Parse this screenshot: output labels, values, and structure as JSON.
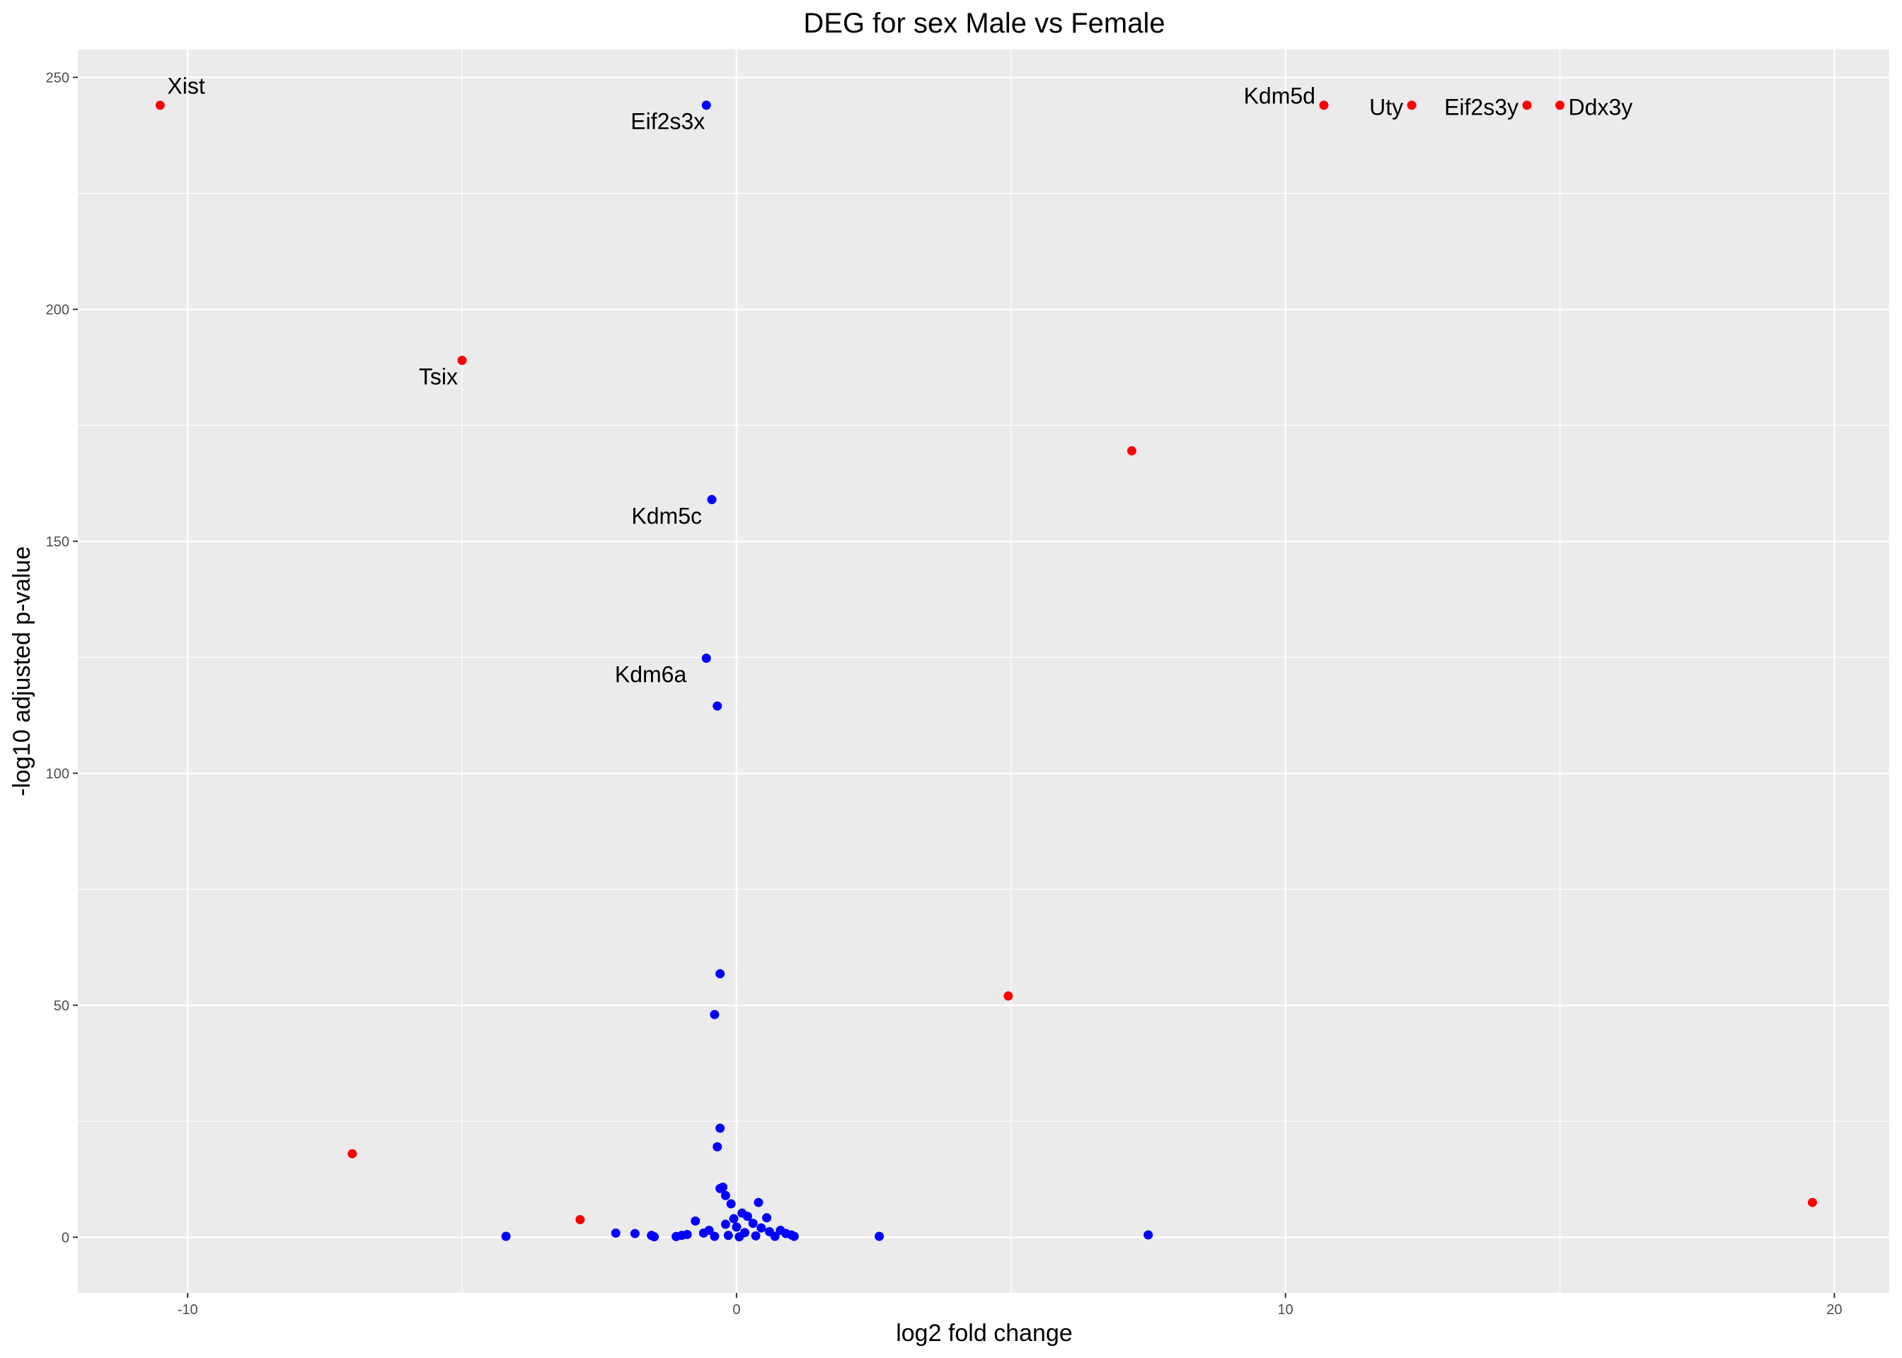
{
  "chart_data": {
    "type": "scatter",
    "title": "DEG for sex Male vs Female",
    "xlabel": "log2 fold change",
    "ylabel": "-log10 adjusted p-value",
    "xlim": [
      -12,
      21
    ],
    "ylim": [
      -12,
      256
    ],
    "x_ticks": [
      -10,
      0,
      10,
      20
    ],
    "y_ticks": [
      0,
      50,
      100,
      150,
      200,
      250
    ],
    "x_tick_labels": [
      "-10",
      "0",
      "10",
      "20"
    ],
    "y_tick_labels": [
      "0",
      "50",
      "100",
      "150",
      "200",
      "250"
    ],
    "grid": true,
    "legend": "none",
    "colors": {
      "significant": "#ff0000",
      "not_significant": "#0000ff",
      "panel_background": "#ebebeb",
      "grid": "#ffffff"
    },
    "series": [
      {
        "color": "#ff0000",
        "points": [
          {
            "x": -10.5,
            "y": 244.0
          },
          {
            "x": -5.0,
            "y": 189.0
          },
          {
            "x": -7.0,
            "y": 18.0
          },
          {
            "x": -2.85,
            "y": 3.8
          },
          {
            "x": 4.95,
            "y": 52.0
          },
          {
            "x": 7.2,
            "y": 169.5
          },
          {
            "x": 10.7,
            "y": 244.0
          },
          {
            "x": 12.3,
            "y": 244.0
          },
          {
            "x": 14.4,
            "y": 244.0
          },
          {
            "x": 15.0,
            "y": 244.0
          },
          {
            "x": 19.6,
            "y": 7.5
          }
        ]
      },
      {
        "color": "#0000ff",
        "points": [
          {
            "x": -0.55,
            "y": 244.0
          },
          {
            "x": -0.45,
            "y": 159.0
          },
          {
            "x": -0.55,
            "y": 124.8
          },
          {
            "x": -0.35,
            "y": 114.5
          },
          {
            "x": -0.3,
            "y": 56.8
          },
          {
            "x": -0.4,
            "y": 48.0
          },
          {
            "x": -0.3,
            "y": 23.5
          },
          {
            "x": -0.35,
            "y": 19.5
          },
          {
            "x": -0.25,
            "y": 10.8
          },
          {
            "x": -0.3,
            "y": 10.5
          },
          {
            "x": -0.2,
            "y": 9.0
          },
          {
            "x": -0.1,
            "y": 7.2
          },
          {
            "x": 0.4,
            "y": 7.5
          },
          {
            "x": 0.1,
            "y": 5.2
          },
          {
            "x": 0.2,
            "y": 4.5
          },
          {
            "x": 0.55,
            "y": 4.2
          },
          {
            "x": -0.05,
            "y": 4.0
          },
          {
            "x": -0.75,
            "y": 3.5
          },
          {
            "x": 0.3,
            "y": 3.0
          },
          {
            "x": -0.2,
            "y": 2.8
          },
          {
            "x": 0.0,
            "y": 2.2
          },
          {
            "x": 0.45,
            "y": 2.0
          },
          {
            "x": -0.5,
            "y": 1.5
          },
          {
            "x": 0.6,
            "y": 1.2
          },
          {
            "x": 0.8,
            "y": 1.5
          },
          {
            "x": -0.6,
            "y": 0.9
          },
          {
            "x": 0.15,
            "y": 1.0
          },
          {
            "x": 0.9,
            "y": 0.8
          },
          {
            "x": 1.0,
            "y": 0.5
          },
          {
            "x": -0.9,
            "y": 0.6
          },
          {
            "x": -1.0,
            "y": 0.4
          },
          {
            "x": -0.15,
            "y": 0.4
          },
          {
            "x": 0.35,
            "y": 0.3
          },
          {
            "x": -0.4,
            "y": 0.2
          },
          {
            "x": 0.7,
            "y": 0.2
          },
          {
            "x": 1.05,
            "y": 0.2
          },
          {
            "x": -1.1,
            "y": 0.15
          },
          {
            "x": 0.05,
            "y": 0.1
          },
          {
            "x": -4.2,
            "y": 0.2
          },
          {
            "x": -2.2,
            "y": 0.9
          },
          {
            "x": -1.85,
            "y": 0.8
          },
          {
            "x": -1.55,
            "y": 0.4
          },
          {
            "x": -1.5,
            "y": 0.1
          },
          {
            "x": 2.6,
            "y": 0.2
          },
          {
            "x": 7.5,
            "y": 0.5
          }
        ]
      }
    ],
    "annotations": [
      {
        "text": "Xist",
        "x": -10.5,
        "y": 244.0,
        "anchor": "start",
        "dx": 10,
        "dy": -16
      },
      {
        "text": "Eif2s3x",
        "x": -0.55,
        "y": 244.0,
        "anchor": "end",
        "dx": -2,
        "dy": 34
      },
      {
        "text": "Tsix",
        "x": -5.0,
        "y": 189.0,
        "anchor": "end",
        "dx": -6,
        "dy": 34
      },
      {
        "text": "Kdm5c",
        "x": -0.45,
        "y": 159.0,
        "anchor": "end",
        "dx": -14,
        "dy": 34
      },
      {
        "text": "Kdm6a",
        "x": -0.55,
        "y": 124.8,
        "anchor": "end",
        "dx": -28,
        "dy": 34
      },
      {
        "text": "Kdm5d",
        "x": 10.7,
        "y": 244.0,
        "anchor": "end",
        "dx": -12,
        "dy": -2
      },
      {
        "text": "Uty",
        "x": 12.3,
        "y": 244.0,
        "anchor": "end",
        "dx": -12,
        "dy": 14
      },
      {
        "text": "Eif2s3y",
        "x": 14.4,
        "y": 244.0,
        "anchor": "end",
        "dx": -12,
        "dy": 14
      },
      {
        "text": "Ddx3y",
        "x": 15.0,
        "y": 244.0,
        "anchor": "start",
        "dx": 12,
        "dy": 14
      }
    ]
  }
}
